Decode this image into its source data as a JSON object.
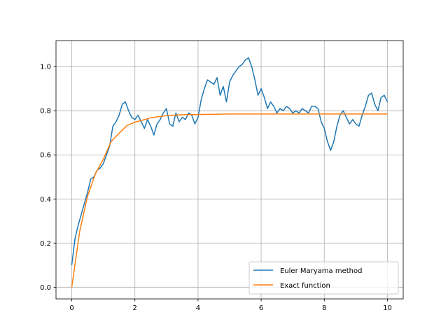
{
  "chart_data": {
    "type": "line",
    "title": "",
    "xlabel": "",
    "ylabel": "",
    "xlim": [
      -0.5,
      10.5
    ],
    "ylim": [
      -0.053,
      1.118
    ],
    "xticks": [
      0,
      2,
      4,
      6,
      8,
      10
    ],
    "yticks": [
      0.0,
      0.2,
      0.4,
      0.6,
      0.8,
      1.0
    ],
    "xtick_labels": [
      "0",
      "2",
      "4",
      "6",
      "8",
      "10"
    ],
    "ytick_labels": [
      "0.0",
      "0.2",
      "0.4",
      "0.6",
      "0.8",
      "1.0"
    ],
    "grid": true,
    "legend_position": "lower-right",
    "series": [
      {
        "name": "Euler Maryama method",
        "color": "#1f77b4",
        "x": [
          0,
          0.1,
          0.2,
          0.3,
          0.4,
          0.5,
          0.6,
          0.7,
          0.8,
          0.9,
          1.0,
          1.1,
          1.2,
          1.3,
          1.4,
          1.5,
          1.6,
          1.7,
          1.8,
          1.9,
          2.0,
          2.1,
          2.2,
          2.3,
          2.4,
          2.5,
          2.6,
          2.7,
          2.8,
          2.9,
          3.0,
          3.1,
          3.2,
          3.3,
          3.4,
          3.5,
          3.6,
          3.7,
          3.8,
          3.9,
          4.0,
          4.1,
          4.2,
          4.3,
          4.4,
          4.5,
          4.6,
          4.7,
          4.8,
          4.9,
          5.0,
          5.1,
          5.2,
          5.3,
          5.4,
          5.5,
          5.6,
          5.7,
          5.8,
          5.9,
          6.0,
          6.1,
          6.2,
          6.3,
          6.4,
          6.5,
          6.6,
          6.7,
          6.8,
          6.9,
          7.0,
          7.1,
          7.2,
          7.3,
          7.4,
          7.5,
          7.6,
          7.7,
          7.8,
          7.9,
          8.0,
          8.1,
          8.2,
          8.3,
          8.4,
          8.5,
          8.6,
          8.7,
          8.8,
          8.9,
          9.0,
          9.1,
          9.2,
          9.3,
          9.4,
          9.5,
          9.6,
          9.7,
          9.8,
          9.9,
          10.0
        ],
        "y": [
          0.1,
          0.22,
          0.28,
          0.33,
          0.38,
          0.43,
          0.49,
          0.5,
          0.53,
          0.54,
          0.56,
          0.6,
          0.64,
          0.73,
          0.75,
          0.78,
          0.83,
          0.84,
          0.8,
          0.77,
          0.76,
          0.78,
          0.75,
          0.72,
          0.76,
          0.73,
          0.69,
          0.74,
          0.76,
          0.79,
          0.81,
          0.74,
          0.73,
          0.79,
          0.75,
          0.77,
          0.76,
          0.79,
          0.78,
          0.74,
          0.77,
          0.85,
          0.9,
          0.94,
          0.93,
          0.92,
          0.95,
          0.87,
          0.91,
          0.84,
          0.93,
          0.96,
          0.98,
          1.0,
          1.01,
          1.03,
          1.04,
          1.0,
          0.94,
          0.87,
          0.9,
          0.86,
          0.81,
          0.84,
          0.82,
          0.79,
          0.81,
          0.8,
          0.82,
          0.81,
          0.79,
          0.8,
          0.79,
          0.81,
          0.8,
          0.79,
          0.82,
          0.82,
          0.81,
          0.75,
          0.72,
          0.66,
          0.62,
          0.66,
          0.73,
          0.78,
          0.8,
          0.77,
          0.74,
          0.76,
          0.74,
          0.73,
          0.78,
          0.82,
          0.87,
          0.88,
          0.83,
          0.8,
          0.86,
          0.87,
          0.84
        ]
      },
      {
        "name": "Exact function",
        "color": "#ff7f0e",
        "x": [
          0,
          0.25,
          0.5,
          0.75,
          1.0,
          1.25,
          1.5,
          1.75,
          2.0,
          2.5,
          3.0,
          3.5,
          4.0,
          5.0,
          6.0,
          7.0,
          8.0,
          9.0,
          10.0
        ],
        "y": [
          0.0,
          0.252,
          0.413,
          0.515,
          0.58,
          0.661,
          0.698,
          0.733,
          0.748,
          0.768,
          0.778,
          0.782,
          0.783,
          0.785,
          0.785,
          0.785,
          0.785,
          0.785,
          0.785
        ]
      }
    ]
  }
}
